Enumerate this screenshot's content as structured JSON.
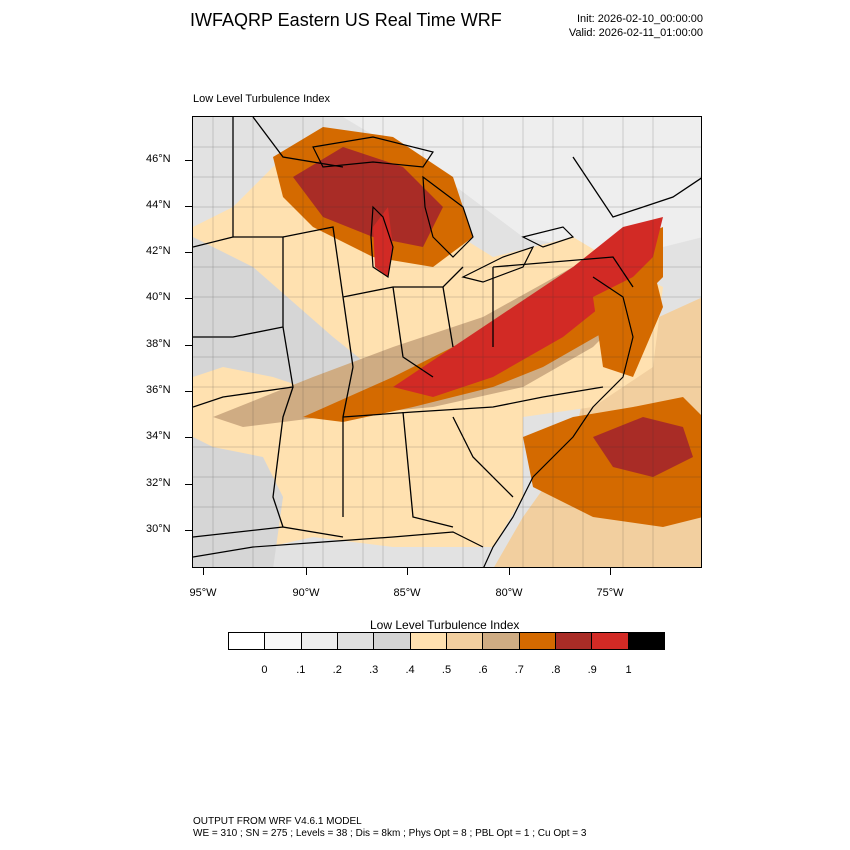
{
  "title": "IWFAQRP Eastern US Real Time WRF",
  "init": "Init: 2026-02-10_00:00:00",
  "valid": "Valid: 2026-02-11_01:00:00",
  "field_label": "Low Level Turbulence Index",
  "map": {
    "lat_labels": [
      "46°N",
      "44°N",
      "42°N",
      "40°N",
      "38°N",
      "36°N",
      "34°N",
      "32°N",
      "30°N"
    ],
    "lon_labels": [
      "95°W",
      "90°W",
      "85°W",
      "80°W",
      "75°W"
    ]
  },
  "colorbar": {
    "title": "Low Level Turbulence Index",
    "colors": [
      "#ffffff",
      "#f7f7f7",
      "#eeeeee",
      "#e0e0e0",
      "#d4d4d4",
      "#ffe1b0",
      "#f2cf9f",
      "#cfac83",
      "#d46a00",
      "#a92c26",
      "#d22a25",
      "#000000"
    ],
    "labels": [
      "0",
      ".1",
      ".2",
      ".3",
      ".4",
      ".5",
      ".6",
      ".7",
      ".8",
      ".9",
      "1"
    ]
  },
  "footer": {
    "line1": "OUTPUT FROM WRF V4.6.1 MODEL",
    "line2": "WE = 310 ; SN = 275 ; Levels = 38 ; Dis = 8km ; Phys Opt = 8 ; PBL Opt = 1 ; Cu Opt = 3"
  }
}
